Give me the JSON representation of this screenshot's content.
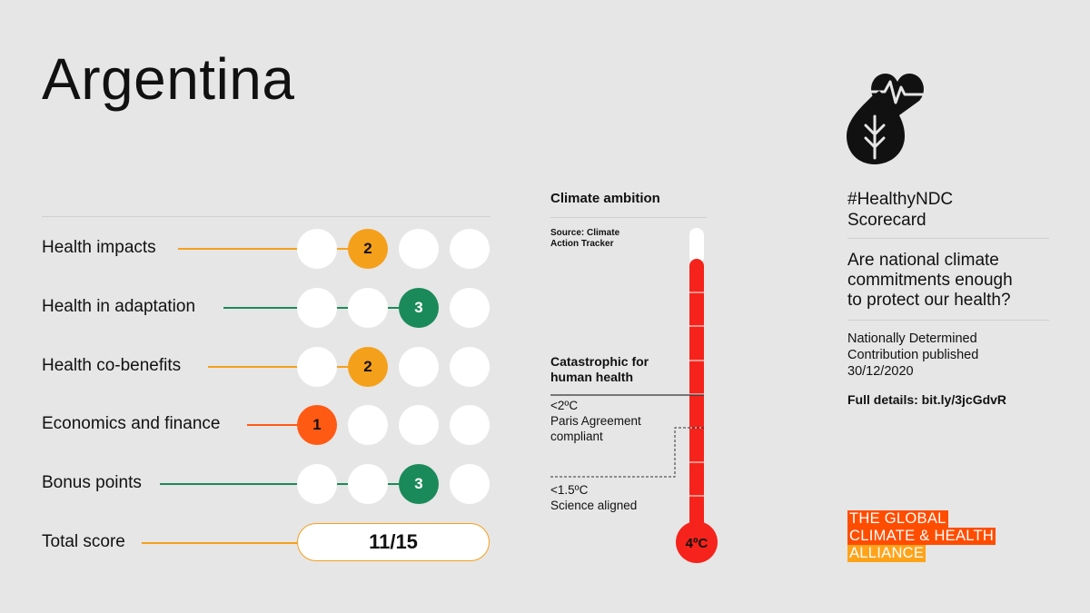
{
  "title": "Argentina",
  "colors": {
    "orange": "#f5a01b",
    "green": "#1b8a5a",
    "red_orange": "#ff5a14",
    "thermometer_red": "#f5231b",
    "logo_red": "#ff4d00",
    "logo_orange": "#ffa31a"
  },
  "scorecard": {
    "rows": [
      {
        "label": "Health impacts",
        "score": "2",
        "max": 4,
        "color": "#f5a01b"
      },
      {
        "label": "Health in adaptation",
        "score": "3",
        "max": 4,
        "color": "#1b8a5a"
      },
      {
        "label": "Health co-benefits",
        "score": "2",
        "max": 4,
        "color": "#f5a01b"
      },
      {
        "label": "Economics and finance",
        "score": "1",
        "max": 4,
        "color": "#ff5a14"
      },
      {
        "label": "Bonus points",
        "score": "3",
        "max": 4,
        "color": "#1b8a5a"
      }
    ],
    "total_label": "Total score",
    "total_value": "11/15"
  },
  "climate_ambition": {
    "heading": "Climate ambition",
    "source": [
      "Source: Climate",
      "Action Tracker"
    ],
    "catastrophic": [
      "Catastrophic for",
      "human health"
    ],
    "paris": [
      "<2ºC",
      "Paris Agreement",
      "compliant"
    ],
    "science": [
      "<1.5ºC",
      "Science aligned"
    ],
    "thermometer_reading": "4ºC"
  },
  "right_panel": {
    "icon": "heart-pulse-leaf-icon",
    "title": [
      "#HealthyNDC",
      "Scorecard"
    ],
    "question": [
      "Are national climate",
      "commitments enough",
      "to protect our health?"
    ],
    "info": [
      "Nationally Determined",
      "Contribution published",
      "30/12/2020"
    ],
    "details": "Full details: bit.ly/3jcGdvR"
  },
  "logo": {
    "lines": [
      "THE GLOBAL",
      "CLIMATE & HEALTH",
      "ALLIANCE"
    ]
  }
}
